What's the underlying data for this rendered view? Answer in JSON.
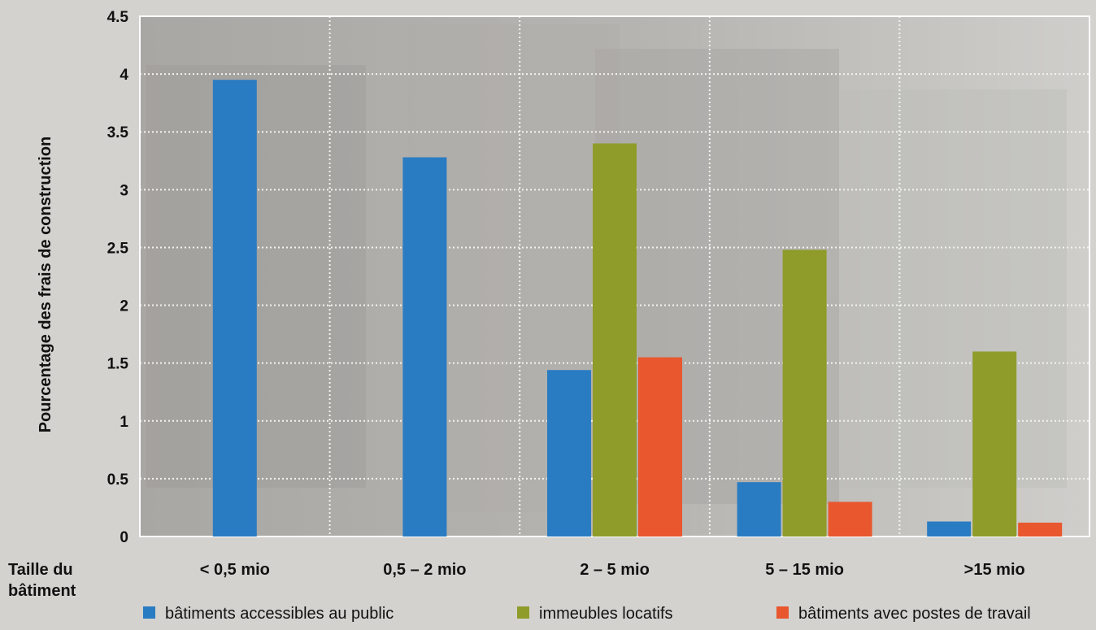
{
  "chart_data": {
    "type": "bar",
    "xlabel": [
      "Taille du",
      "bâtiment"
    ],
    "ylabel": "Pourcentage des frais de construction",
    "ylim": [
      0,
      4.5
    ],
    "yticks": [
      "0",
      "0.5",
      "1",
      "1.5",
      "2",
      "2.5",
      "3",
      "3.5",
      "4",
      "4.5"
    ],
    "categories": [
      "< 0,5 mio",
      "0,5 – 2 mio",
      "2 – 5 mio",
      "5 – 15 mio",
      ">15 mio"
    ],
    "series": [
      {
        "name": "bâtiments accessibles au public",
        "color": "#2a7cc2",
        "values": [
          3.95,
          3.28,
          1.44,
          0.47,
          0.13
        ]
      },
      {
        "name": "immeubles locatifs",
        "color": "#8f9c2a",
        "values": [
          null,
          null,
          3.4,
          2.48,
          1.6
        ]
      },
      {
        "name": "bâtiments avec postes de travail",
        "color": "#e8572e",
        "values": [
          null,
          null,
          1.55,
          0.3,
          0.12
        ]
      }
    ],
    "grid": true,
    "legend_position": "bottom"
  }
}
